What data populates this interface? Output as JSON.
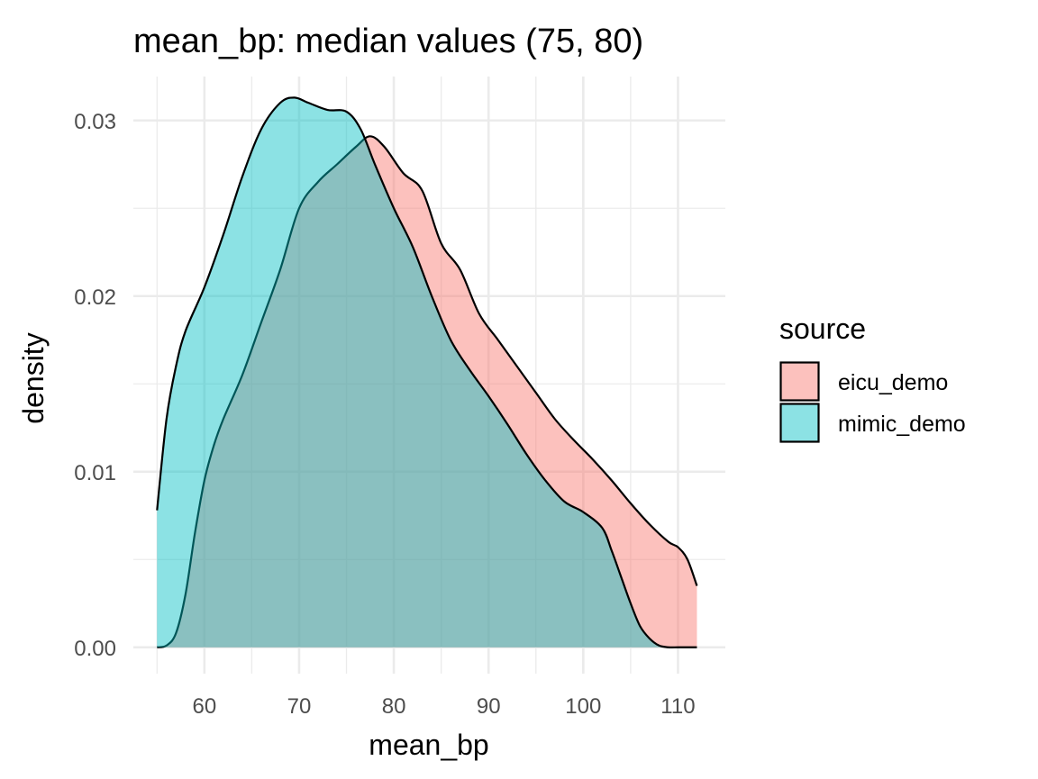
{
  "chart_data": {
    "type": "area",
    "subtype": "density",
    "title": "mean_bp: median values (75, 80)",
    "xlabel": "mean_bp",
    "ylabel": "density",
    "xlim": [
      52.5,
      115
    ],
    "ylim": [
      -0.0015,
      0.0325
    ],
    "x_ticks": [
      60,
      70,
      80,
      90,
      100,
      110
    ],
    "x_tick_labels": [
      "60",
      "70",
      "80",
      "90",
      "100",
      "110"
    ],
    "y_ticks": [
      0.0,
      0.01,
      0.02,
      0.03
    ],
    "y_tick_labels": [
      "0.00",
      "0.01",
      "0.02",
      "0.03"
    ],
    "grid": true,
    "legend": {
      "title": "source",
      "position": "right"
    },
    "series": [
      {
        "name": "eicu_demo",
        "color": "#F8766D",
        "x": [
          55,
          56,
          57,
          58,
          59,
          60,
          61,
          62,
          64,
          66,
          68,
          70,
          72,
          74,
          76,
          77.5,
          79,
          81,
          83,
          85,
          87,
          89,
          91,
          93,
          95,
          97,
          99,
          101,
          103,
          105,
          107,
          109,
          110,
          111,
          112
        ],
        "y": [
          0.0,
          0.0001,
          0.0008,
          0.003,
          0.0065,
          0.0095,
          0.0115,
          0.013,
          0.0155,
          0.0185,
          0.0215,
          0.025,
          0.0265,
          0.0275,
          0.0285,
          0.0291,
          0.0285,
          0.027,
          0.026,
          0.023,
          0.0215,
          0.019,
          0.0175,
          0.016,
          0.0145,
          0.013,
          0.0118,
          0.0107,
          0.0095,
          0.0082,
          0.007,
          0.006,
          0.0057,
          0.005,
          0.0035
        ]
      },
      {
        "name": "mimic_demo",
        "color": "#00BFC4",
        "x": [
          55,
          56,
          57,
          58,
          60,
          62,
          64,
          66,
          68,
          69.5,
          71,
          73,
          75,
          76.5,
          78,
          80,
          82,
          84,
          86,
          88,
          90,
          92,
          94,
          96,
          98,
          100,
          102,
          103,
          104,
          105,
          106,
          107,
          108,
          109,
          110,
          111,
          112
        ],
        "y": [
          0.0078,
          0.013,
          0.016,
          0.018,
          0.0205,
          0.0235,
          0.0268,
          0.0295,
          0.031,
          0.0313,
          0.031,
          0.0306,
          0.0305,
          0.0295,
          0.0275,
          0.025,
          0.0228,
          0.02,
          0.0175,
          0.0158,
          0.0143,
          0.0127,
          0.011,
          0.0095,
          0.0083,
          0.0077,
          0.0068,
          0.0055,
          0.004,
          0.0025,
          0.0012,
          0.0005,
          0.0001,
          0.0,
          0.0,
          0.0,
          0.0
        ]
      }
    ]
  }
}
